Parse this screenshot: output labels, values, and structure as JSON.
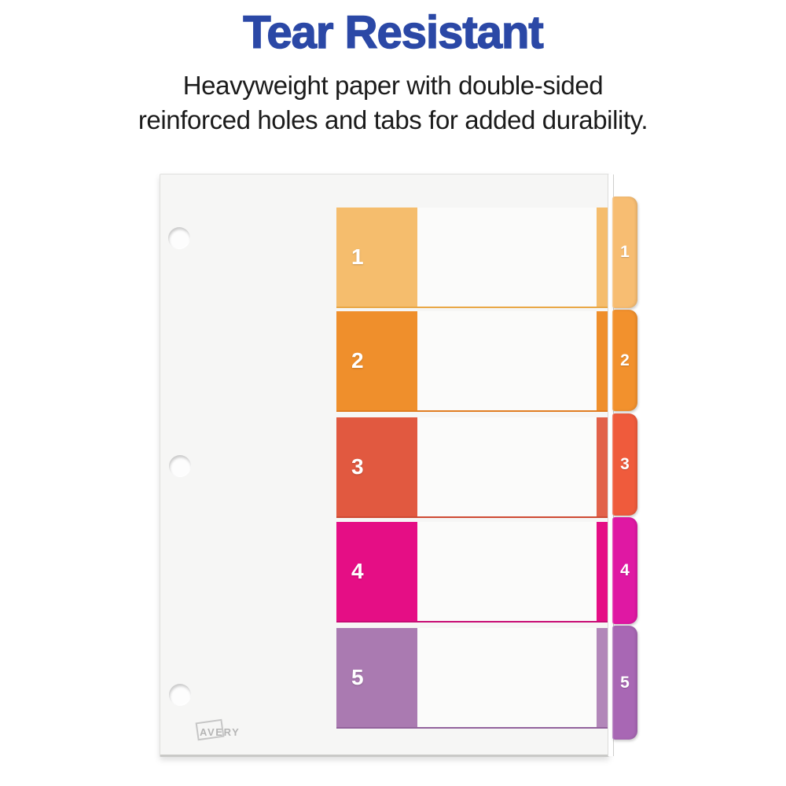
{
  "header": {
    "title": "Tear Resistant",
    "title_color": "#2b48a6",
    "subtitle_line1": "Heavyweight paper with double-sided",
    "subtitle_line2": "reinforced holes and tabs for added durability.",
    "subtitle_color": "#1b1b1b"
  },
  "divider": {
    "brand": "AVERY",
    "sheet_color": "#f6f6f5",
    "row_bg_color": "#fbfbfa",
    "rows": [
      {
        "number": "1",
        "block_color": "#f5bd6d",
        "line_color": "#e9a847",
        "strip_color": "#f5bd6d",
        "tab_color": "#f7bd72"
      },
      {
        "number": "2",
        "block_color": "#ef8f2c",
        "line_color": "#e07d22",
        "strip_color": "#ef8f2c",
        "tab_color": "#f2912d"
      },
      {
        "number": "3",
        "block_color": "#e15940",
        "line_color": "#ce4a33",
        "strip_color": "#e2624a",
        "tab_color": "#ef5b3c"
      },
      {
        "number": "4",
        "block_color": "#e50e85",
        "line_color": "#c70c74",
        "strip_color": "#e50e85",
        "tab_color": "#df18a3"
      },
      {
        "number": "5",
        "block_color": "#aa7ab1",
        "line_color": "#92629c",
        "strip_color": "#b287b9",
        "tab_color": "#a867b4"
      }
    ],
    "hole_count": "3"
  }
}
